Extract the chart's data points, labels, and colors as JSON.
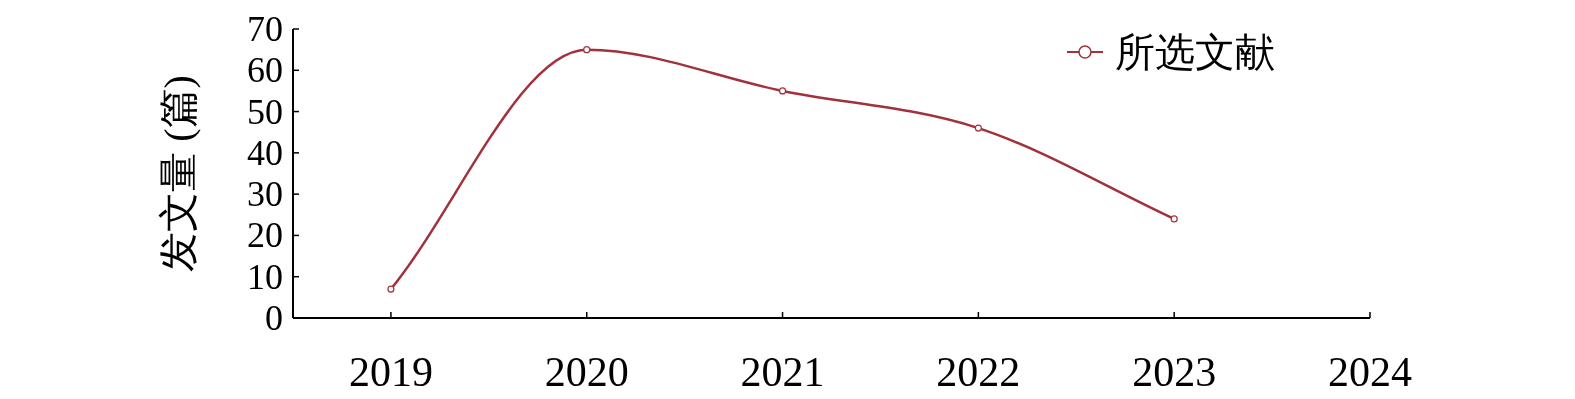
{
  "chart_data": {
    "type": "line",
    "ylabel": "发文量 (篇)",
    "x": [
      2019,
      2020,
      2021,
      2022,
      2023
    ],
    "series": [
      {
        "name": "所选文献",
        "color": "#a0323c",
        "values": [
          7,
          65,
          55,
          46,
          24
        ]
      }
    ],
    "xlim": [
      2018.5,
      2024
    ],
    "xticks": [
      2019,
      2020,
      2021,
      2022,
      2023,
      2024
    ],
    "ylim": [
      0,
      70
    ],
    "yticks": [
      0,
      10,
      20,
      30,
      40,
      50,
      60,
      70
    ],
    "legend": "top right",
    "marker": "circle"
  }
}
